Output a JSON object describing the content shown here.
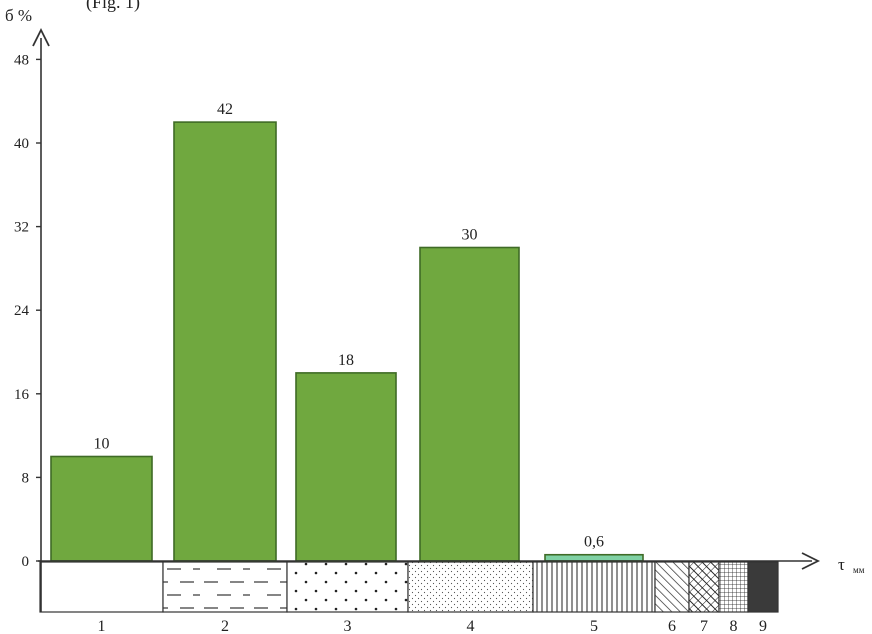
{
  "header": {
    "partial_text": "(Fig. 1)"
  },
  "chart_data": {
    "type": "bar",
    "ylabel": "б %",
    "xlabel": "τ",
    "xlabel_subscript": "мм",
    "yticks": [
      0,
      8,
      16,
      24,
      32,
      40,
      48
    ],
    "ylim": [
      0,
      50
    ],
    "categories": [
      "1",
      "2",
      "3",
      "4",
      "5",
      "6",
      "7",
      "8",
      "9"
    ],
    "values": [
      10,
      42,
      18,
      30,
      0.6,
      0,
      0,
      0,
      0
    ],
    "data_labels": [
      "10",
      "42",
      "18",
      "30",
      "0,6",
      "",
      "",
      "",
      ""
    ],
    "bar_color": "#70a83f",
    "bar_edge_color": "#3f6b26",
    "highlight_color": "#7fd1a4",
    "patterns": [
      "blank",
      "dashes",
      "dots",
      "fine-dots",
      "vertical-lines",
      "diagonal",
      "cross-diagonal",
      "grid",
      "solid-dark"
    ],
    "grid": false
  }
}
